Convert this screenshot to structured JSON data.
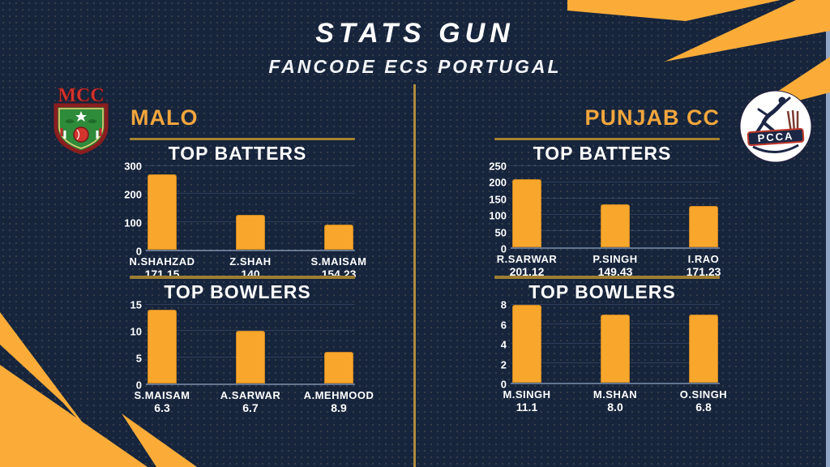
{
  "page": {
    "title": "STATS GUN",
    "subtitle": "FANCODE ECS PORTUGAL"
  },
  "colors": {
    "background": "#16243C",
    "bar_orange": "#F8A62C",
    "decor_orange": "#FBAC38",
    "gold_line": "#A5832F",
    "divider_gold": "#B18C3C",
    "team_name_orange": "#F2A63C",
    "text_white": "#FFFFFF",
    "edge_strip_blue": "#93A7C7"
  },
  "teams": [
    {
      "name": "MALO",
      "logo_text": "MCC"
    },
    {
      "name": "PUNJAB CC",
      "logo_text": "PCCA"
    }
  ],
  "chart_data": [
    {
      "team": "MALO",
      "title": "TOP BATTERS",
      "type": "bar",
      "categories": [
        "N.SHAHZAD",
        "Z.SHAH",
        "S.MAISAM"
      ],
      "values": [
        270,
        125,
        90
      ],
      "value_labels": [
        "171.15",
        "140",
        "154.23"
      ],
      "yticks": [
        0,
        100,
        200,
        300
      ],
      "ylim": [
        0,
        300
      ],
      "grid": true,
      "legend": false
    },
    {
      "team": "MALO",
      "title": "TOP BOWLERS",
      "type": "bar",
      "categories": [
        "S.MAISAM",
        "A.SARWAR",
        "A.MEHMOOD"
      ],
      "values": [
        14,
        10,
        6
      ],
      "value_labels": [
        "6.3",
        "6.7",
        "8.9"
      ],
      "yticks": [
        0,
        5,
        10,
        15
      ],
      "ylim": [
        0,
        15
      ],
      "grid": true,
      "legend": false
    },
    {
      "team": "PUNJAB CC",
      "title": "TOP BATTERS",
      "type": "bar",
      "categories": [
        "R.SARWAR",
        "P.SINGH",
        "I.RAO"
      ],
      "values": [
        210,
        133,
        127
      ],
      "value_labels": [
        "201.12",
        "149.43",
        "171.23"
      ],
      "yticks": [
        0,
        50,
        100,
        150,
        200,
        250
      ],
      "ylim": [
        0,
        250
      ],
      "grid": true,
      "legend": false
    },
    {
      "team": "PUNJAB CC",
      "title": "TOP BOWLERS",
      "type": "bar",
      "categories": [
        "M.SINGH",
        "M.SHAN",
        "O.SINGH"
      ],
      "values": [
        8,
        7,
        7
      ],
      "value_labels": [
        "11.1",
        "8.0",
        "6.8"
      ],
      "yticks": [
        0,
        2,
        4,
        6,
        8
      ],
      "ylim": [
        0,
        8
      ],
      "grid": true,
      "legend": false
    }
  ]
}
